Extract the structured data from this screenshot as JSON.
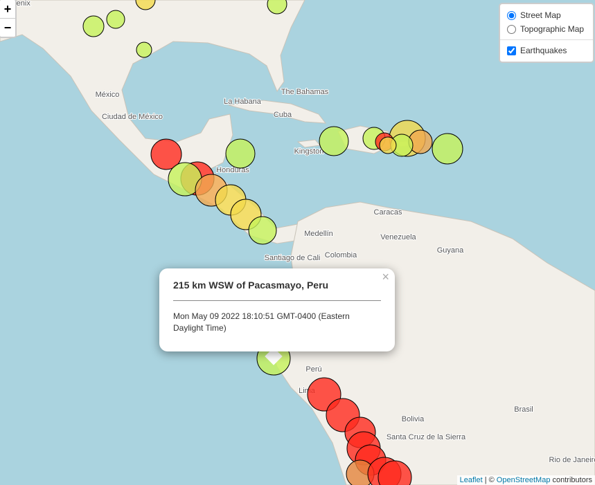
{
  "zoom": {
    "in": "+",
    "out": "−"
  },
  "layers": {
    "base": [
      "Street Map",
      "Topographic Map"
    ],
    "overlays": [
      "Earthquakes"
    ]
  },
  "popup": {
    "title": "215 km WSW of Pacasmayo, Peru",
    "time": "Mon May 09 2022 18:10:51 GMT-0400 (Eastern Daylight Time)",
    "close": "×"
  },
  "attribution": {
    "leaflet": "Leaflet",
    "separator": "| ©",
    "osm": "OpenStreetMap",
    "suffix": "contributors"
  },
  "map_labels": [
    "Phoenix",
    "México",
    "Ciudad de México",
    "The Bahamas",
    "La Habana",
    "Cuba",
    "Kingston",
    "Honduras",
    "Caracas",
    "Medellín",
    "Venezuela",
    "Guyana",
    "Santiago de Cali",
    "Colombia",
    "Perú",
    "Lima",
    "Bolivia",
    "Santa Cruz de la Sierra",
    "Brasil",
    "Rio de Janeiro"
  ]
}
